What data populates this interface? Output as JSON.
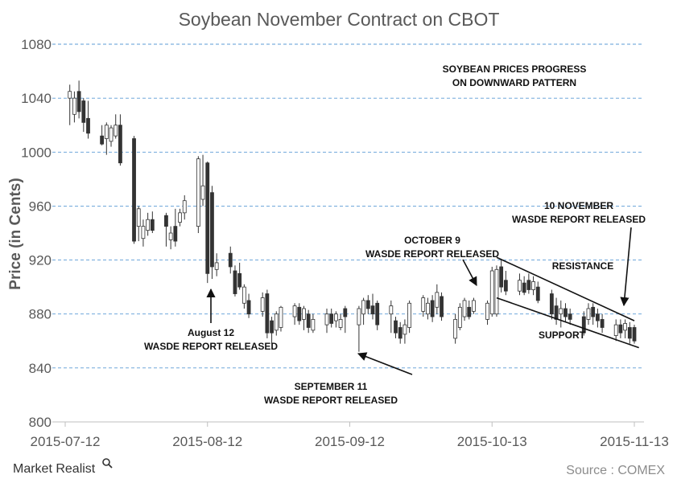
{
  "chart_data": {
    "type": "candlestick",
    "title": "Soybean November Contract on CBOT",
    "ylabel": "Price (in Cents)",
    "xlabel": "",
    "ylim": [
      800,
      1080
    ],
    "yticks": [
      "800",
      "840",
      "880",
      "920",
      "960",
      "1000",
      "1040",
      "1080"
    ],
    "xticks": [
      "2015-07-12",
      "2015-08-12",
      "2015-09-12",
      "2015-10-13",
      "2015-11-13"
    ],
    "grid": "horizontal dashed",
    "colors": {
      "up": "#ffffff",
      "down": "#333333",
      "grid": "#5b9bd5",
      "axis": "#bfbfbf"
    },
    "candles": [
      {
        "day": 1,
        "open": 1040,
        "close": 1045,
        "high": 1050,
        "low": 1020
      },
      {
        "day": 2,
        "open": 1028,
        "close": 1040,
        "high": 1045,
        "low": 1022
      },
      {
        "day": 3,
        "open": 1045,
        "close": 1030,
        "high": 1053,
        "low": 1025
      },
      {
        "day": 4,
        "open": 1038,
        "close": 1022,
        "high": 1040,
        "low": 1015
      },
      {
        "day": 5,
        "open": 1025,
        "close": 1014,
        "high": 1038,
        "low": 1010
      },
      {
        "day": 8,
        "open": 1012,
        "close": 1006,
        "high": 1020,
        "low": 1005
      },
      {
        "day": 9,
        "open": 1010,
        "close": 1020,
        "high": 1022,
        "low": 998
      },
      {
        "day": 10,
        "open": 1008,
        "close": 1018,
        "high": 1020,
        "low": 1004
      },
      {
        "day": 11,
        "open": 1012,
        "close": 1020,
        "high": 1028,
        "low": 1010
      },
      {
        "day": 12,
        "open": 1020,
        "close": 992,
        "high": 1028,
        "low": 990
      },
      {
        "day": 15,
        "open": 1010,
        "close": 934,
        "high": 1012,
        "low": 932
      },
      {
        "day": 16,
        "open": 945,
        "close": 958,
        "high": 960,
        "low": 934
      },
      {
        "day": 17,
        "open": 936,
        "close": 945,
        "high": 950,
        "low": 930
      },
      {
        "day": 18,
        "open": 942,
        "close": 950,
        "high": 955,
        "low": 938
      },
      {
        "day": 19,
        "open": 950,
        "close": 942,
        "high": 956,
        "low": 940
      },
      {
        "day": 22,
        "open": 953,
        "close": 945,
        "high": 955,
        "low": 930
      },
      {
        "day": 23,
        "open": 935,
        "close": 940,
        "high": 945,
        "low": 928
      },
      {
        "day": 24,
        "open": 945,
        "close": 934,
        "high": 958,
        "low": 930
      },
      {
        "day": 25,
        "open": 948,
        "close": 955,
        "high": 958,
        "low": 945
      },
      {
        "day": 26,
        "open": 955,
        "close": 964,
        "high": 968,
        "low": 950
      },
      {
        "day": 29,
        "open": 945,
        "close": 995,
        "high": 997,
        "low": 940
      },
      {
        "day": 30,
        "open": 965,
        "close": 975,
        "high": 998,
        "low": 960
      },
      {
        "day": 31,
        "open": 992,
        "close": 910,
        "high": 993,
        "low": 903
      },
      {
        "day": 32,
        "open": 970,
        "close": 915,
        "high": 975,
        "low": 906
      },
      {
        "day": 33,
        "open": 913,
        "close": 918,
        "high": 925,
        "low": 908
      },
      {
        "day": 36,
        "open": 925,
        "close": 915,
        "high": 930,
        "low": 910
      },
      {
        "day": 37,
        "open": 912,
        "close": 895,
        "high": 916,
        "low": 893
      },
      {
        "day": 38,
        "open": 910,
        "close": 900,
        "high": 918,
        "low": 898
      },
      {
        "day": 39,
        "open": 888,
        "close": 900,
        "high": 902,
        "low": 884
      },
      {
        "day": 40,
        "open": 890,
        "close": 880,
        "high": 895,
        "low": 877
      },
      {
        "day": 43,
        "open": 882,
        "close": 892,
        "high": 896,
        "low": 878
      },
      {
        "day": 44,
        "open": 895,
        "close": 866,
        "high": 898,
        "low": 862
      },
      {
        "day": 45,
        "open": 875,
        "close": 866,
        "high": 878,
        "low": 858
      },
      {
        "day": 46,
        "open": 868,
        "close": 880,
        "high": 882,
        "low": 864
      },
      {
        "day": 47,
        "open": 870,
        "close": 885,
        "high": 886,
        "low": 867
      },
      {
        "day": 50,
        "open": 878,
        "close": 886,
        "high": 888,
        "low": 872
      },
      {
        "day": 51,
        "open": 885,
        "close": 875,
        "high": 888,
        "low": 872
      },
      {
        "day": 52,
        "open": 876,
        "close": 884,
        "high": 886,
        "low": 868
      },
      {
        "day": 53,
        "open": 880,
        "close": 870,
        "high": 883,
        "low": 866
      },
      {
        "day": 54,
        "open": 868,
        "close": 876,
        "high": 880,
        "low": 866
      },
      {
        "day": 57,
        "open": 872,
        "close": 880,
        "high": 884,
        "low": 866
      },
      {
        "day": 58,
        "open": 880,
        "close": 873,
        "high": 884,
        "low": 870
      },
      {
        "day": 59,
        "open": 875,
        "close": 880,
        "high": 882,
        "low": 870
      },
      {
        "day": 60,
        "open": 870,
        "close": 876,
        "high": 880,
        "low": 868
      },
      {
        "day": 61,
        "open": 884,
        "close": 878,
        "high": 886,
        "low": 866
      },
      {
        "day": 64,
        "open": 872,
        "close": 884,
        "high": 886,
        "low": 852
      },
      {
        "day": 65,
        "open": 880,
        "close": 890,
        "high": 892,
        "low": 872
      },
      {
        "day": 66,
        "open": 890,
        "close": 884,
        "high": 894,
        "low": 880
      },
      {
        "day": 67,
        "open": 886,
        "close": 880,
        "high": 895,
        "low": 876
      },
      {
        "day": 68,
        "open": 888,
        "close": 872,
        "high": 890,
        "low": 868
      },
      {
        "day": 71,
        "open": 880,
        "close": 886,
        "high": 890,
        "low": 866
      },
      {
        "day": 72,
        "open": 875,
        "close": 866,
        "high": 878,
        "low": 862
      },
      {
        "day": 73,
        "open": 870,
        "close": 862,
        "high": 874,
        "low": 858
      },
      {
        "day": 74,
        "open": 865,
        "close": 872,
        "high": 876,
        "low": 858
      },
      {
        "day": 75,
        "open": 870,
        "close": 888,
        "high": 890,
        "low": 866
      },
      {
        "day": 78,
        "open": 882,
        "close": 892,
        "high": 894,
        "low": 878
      },
      {
        "day": 79,
        "open": 880,
        "close": 888,
        "high": 892,
        "low": 876
      },
      {
        "day": 80,
        "open": 890,
        "close": 878,
        "high": 894,
        "low": 874
      },
      {
        "day": 81,
        "open": 885,
        "close": 896,
        "high": 902,
        "low": 880
      },
      {
        "day": 82,
        "open": 893,
        "close": 878,
        "high": 896,
        "low": 875
      },
      {
        "day": 85,
        "open": 862,
        "close": 876,
        "high": 880,
        "low": 858
      },
      {
        "day": 86,
        "open": 870,
        "close": 885,
        "high": 888,
        "low": 868
      },
      {
        "day": 87,
        "open": 878,
        "close": 890,
        "high": 892,
        "low": 875
      },
      {
        "day": 88,
        "open": 885,
        "close": 878,
        "high": 890,
        "low": 876
      },
      {
        "day": 89,
        "open": 882,
        "close": 890,
        "high": 892,
        "low": 880
      },
      {
        "day": 92,
        "open": 876,
        "close": 888,
        "high": 890,
        "low": 872
      },
      {
        "day": 93,
        "open": 880,
        "close": 912,
        "high": 915,
        "low": 878
      },
      {
        "day": 94,
        "open": 880,
        "close": 913,
        "high": 916,
        "low": 878
      },
      {
        "day": 95,
        "open": 915,
        "close": 900,
        "high": 920,
        "low": 896
      },
      {
        "day": 96,
        "open": 905,
        "close": 897,
        "high": 912,
        "low": 894
      },
      {
        "day": 99,
        "open": 897,
        "close": 905,
        "high": 910,
        "low": 894
      },
      {
        "day": 100,
        "open": 903,
        "close": 896,
        "high": 908,
        "low": 894
      },
      {
        "day": 101,
        "open": 905,
        "close": 898,
        "high": 910,
        "low": 895
      },
      {
        "day": 102,
        "open": 898,
        "close": 904,
        "high": 908,
        "low": 894
      },
      {
        "day": 103,
        "open": 900,
        "close": 890,
        "high": 904,
        "low": 888
      },
      {
        "day": 106,
        "open": 895,
        "close": 880,
        "high": 898,
        "low": 876
      },
      {
        "day": 107,
        "open": 886,
        "close": 876,
        "high": 892,
        "low": 872
      },
      {
        "day": 108,
        "open": 880,
        "close": 884,
        "high": 890,
        "low": 870
      },
      {
        "day": 109,
        "open": 884,
        "close": 878,
        "high": 888,
        "low": 874
      },
      {
        "day": 110,
        "open": 880,
        "close": 876,
        "high": 884,
        "low": 872
      },
      {
        "day": 113,
        "open": 878,
        "close": 866,
        "high": 882,
        "low": 864
      },
      {
        "day": 114,
        "open": 876,
        "close": 884,
        "high": 888,
        "low": 872
      },
      {
        "day": 115,
        "open": 885,
        "close": 878,
        "high": 888,
        "low": 872
      },
      {
        "day": 116,
        "open": 880,
        "close": 875,
        "high": 884,
        "low": 870
      },
      {
        "day": 117,
        "open": 876,
        "close": 870,
        "high": 880,
        "low": 866
      },
      {
        "day": 120,
        "open": 864,
        "close": 872,
        "high": 876,
        "low": 860
      },
      {
        "day": 121,
        "open": 872,
        "close": 866,
        "high": 876,
        "low": 862
      },
      {
        "day": 122,
        "open": 868,
        "close": 873,
        "high": 876,
        "low": 862
      },
      {
        "day": 123,
        "open": 870,
        "close": 862,
        "high": 874,
        "low": 858
      },
      {
        "day": 124,
        "open": 870,
        "close": 860,
        "high": 872,
        "low": 858
      }
    ],
    "annotations": [
      {
        "id": "pattern",
        "lines": [
          "SOYBEAN PRICES PROGRESS",
          "ON DOWNWARD PATTERN"
        ]
      },
      {
        "id": "aug12",
        "lines": [
          "August 12",
          "WASDE REPORT RELEASED"
        ]
      },
      {
        "id": "sep11",
        "lines": [
          "SEPTEMBER  11",
          "WASDE REPORT RELEASED"
        ]
      },
      {
        "id": "oct9",
        "lines": [
          "OCTOBER  9",
          "WASDE REPORT RELEASED"
        ]
      },
      {
        "id": "nov10",
        "lines": [
          "10 NOVEMBER",
          "WASDE REPORT RELEASED"
        ]
      },
      {
        "id": "resistance",
        "lines": [
          "RESISTANCE"
        ]
      },
      {
        "id": "support",
        "lines": [
          "SUPPORT"
        ]
      }
    ],
    "trendlines": [
      {
        "name": "resistance",
        "from": {
          "day": 94,
          "price": 922
        },
        "to": {
          "day": 124,
          "price": 875
        }
      },
      {
        "name": "support",
        "from": {
          "day": 94,
          "price": 892
        },
        "to": {
          "day": 125,
          "price": 855
        }
      }
    ]
  },
  "footer": {
    "source": "Source : COMEX",
    "logo_text": "Market Realist"
  }
}
